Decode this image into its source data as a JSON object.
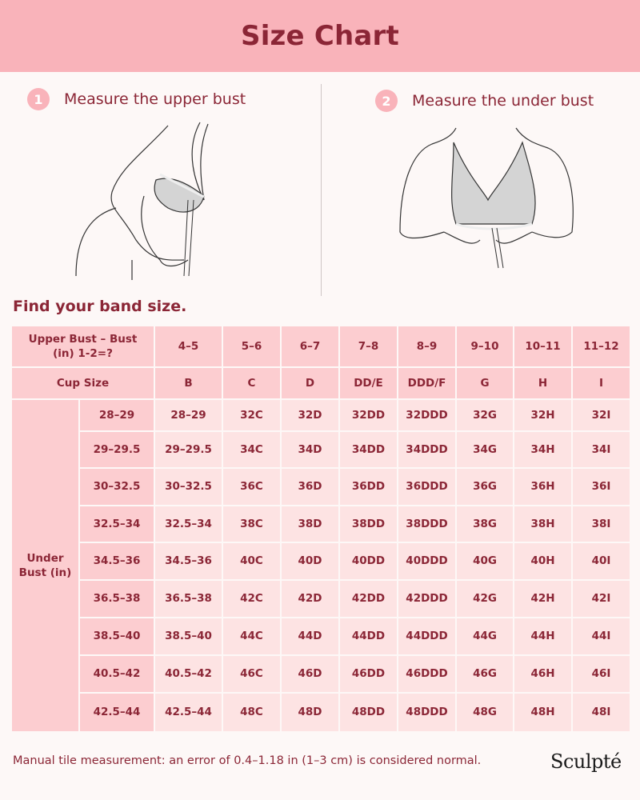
{
  "header": {
    "title": "Size Chart"
  },
  "steps": [
    {
      "number": "1",
      "label": "Measure the upper bust"
    },
    {
      "number": "2",
      "label": "Measure the under bust"
    }
  ],
  "band_title": "Find your band size.",
  "table": {
    "upper_header": "Upper Bust – Bust (in) 1-2=?",
    "cup_header": "Cup Size",
    "under_label": "Under Bust (in)",
    "differences": [
      "4–5",
      "5–6",
      "6–7",
      "7–8",
      "8–9",
      "9–10",
      "10–11",
      "11–12"
    ],
    "cups": [
      "B",
      "C",
      "D",
      "DD/E",
      "DDD/F",
      "G",
      "H",
      "I"
    ],
    "rows": [
      {
        "under": "28–29",
        "cells": [
          "28–29",
          "32C",
          "32D",
          "32DD",
          "32DDD",
          "32G",
          "32H",
          "32I"
        ]
      },
      {
        "under": "29–29.5",
        "cells": [
          "29–29.5",
          "34C",
          "34D",
          "34DD",
          "34DDD",
          "34G",
          "34H",
          "34I"
        ]
      },
      {
        "under": "30–32.5",
        "cells": [
          "30–32.5",
          "36C",
          "36D",
          "36DD",
          "36DDD",
          "36G",
          "36H",
          "36I"
        ]
      },
      {
        "under": "32.5–34",
        "cells": [
          "32.5–34",
          "38C",
          "38D",
          "38DD",
          "38DDD",
          "38G",
          "38H",
          "38I"
        ]
      },
      {
        "under": "34.5–36",
        "cells": [
          "34.5–36",
          "40C",
          "40D",
          "40DD",
          "40DDD",
          "40G",
          "40H",
          "40I"
        ]
      },
      {
        "under": "36.5–38",
        "cells": [
          "36.5–38",
          "42C",
          "42D",
          "42DD",
          "42DDD",
          "42G",
          "42H",
          "42I"
        ]
      },
      {
        "under": "38.5–40",
        "cells": [
          "38.5–40",
          "44C",
          "44D",
          "44DD",
          "44DDD",
          "44G",
          "44H",
          "44I"
        ]
      },
      {
        "under": "40.5–42",
        "cells": [
          "40.5–42",
          "46C",
          "46D",
          "46DD",
          "46DDD",
          "46G",
          "46H",
          "46I"
        ]
      },
      {
        "under": "42.5–44",
        "cells": [
          "42.5–44",
          "48C",
          "48D",
          "48DD",
          "48DDD",
          "48G",
          "48H",
          "48I"
        ]
      }
    ]
  },
  "footer": {
    "note": "Manual tile measurement: an error of 0.4–1.18 in (1–3 cm) is considered normal.",
    "logo": "Sculpté"
  },
  "colors": {
    "banner": "#f9b3ba",
    "text": "#8b2636",
    "header_cell": "#fccdd0",
    "data_cell": "#fde3e3",
    "background": "#fdf8f7"
  }
}
